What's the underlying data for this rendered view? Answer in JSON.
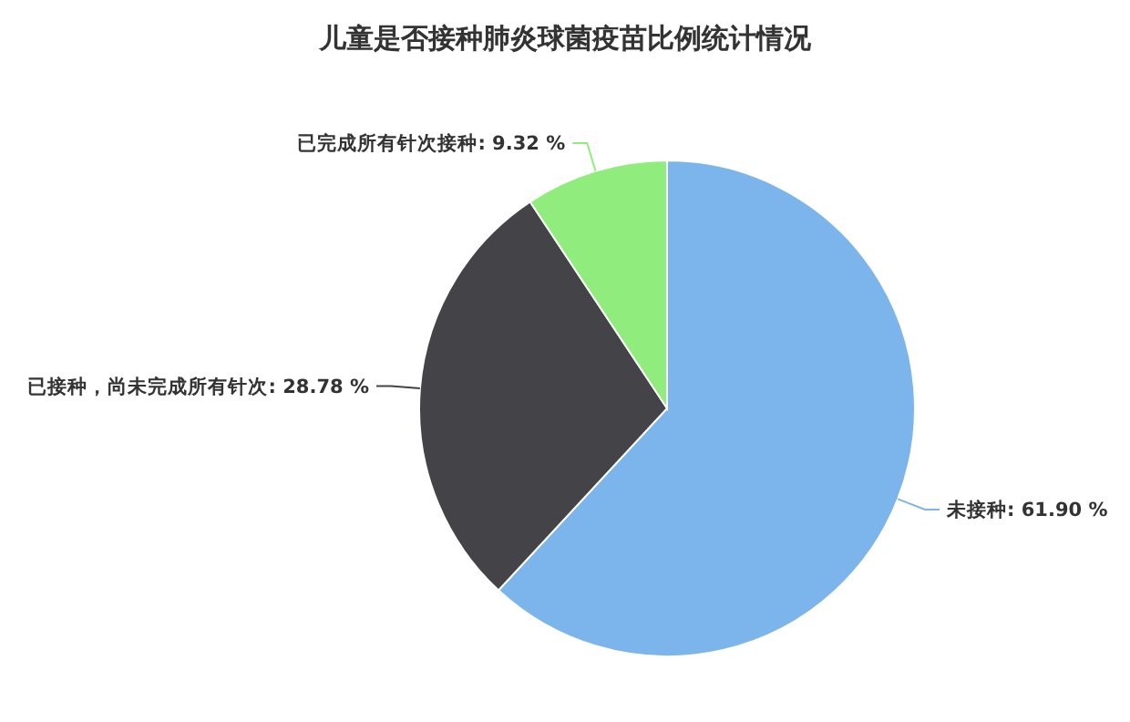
{
  "chart_data": {
    "type": "pie",
    "title": "儿童是否接种肺炎球菌疫苗比例统计情况",
    "categories": [
      "未接种",
      "已接种，尚未完成所有针次",
      "已完成所有针次接种"
    ],
    "values": [
      61.9,
      28.78,
      9.32
    ],
    "colors": [
      "#7cb5ec",
      "#434348",
      "#90ed7d"
    ],
    "value_labels": [
      "61.90 %",
      "28.78 %",
      "9.32 %"
    ]
  }
}
